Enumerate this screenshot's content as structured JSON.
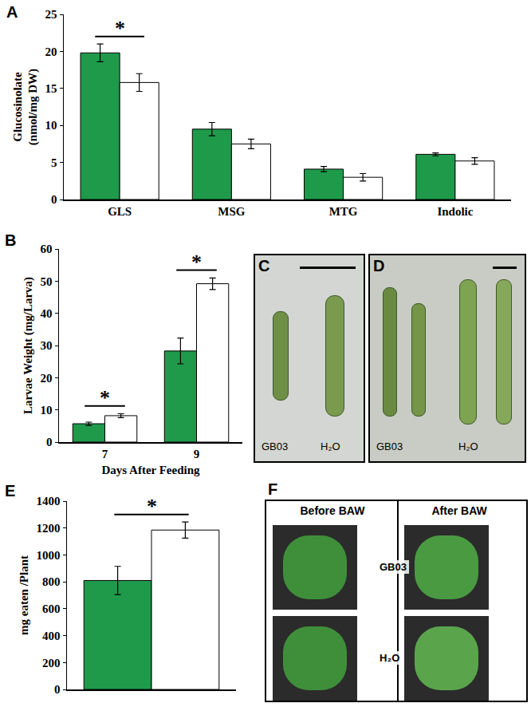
{
  "chart_data": [
    {
      "panel": "A",
      "type": "bar",
      "categories": [
        "GLS",
        "MSG",
        "MTG",
        "Indolic"
      ],
      "y_label": "Glucosinolate\n(nmol/mg DW)",
      "series": [
        {
          "color": "#1f9a4b",
          "values": [
            19.8,
            9.5,
            4.1,
            6.1
          ],
          "error": [
            1.2,
            0.9,
            0.35,
            0.2
          ]
        },
        {
          "color": "#ffffff",
          "values": [
            15.8,
            7.5,
            3.0,
            5.2
          ],
          "error": [
            1.2,
            0.65,
            0.5,
            0.45
          ]
        }
      ],
      "ylim": [
        0,
        25
      ],
      "yticks": [
        0,
        5,
        10,
        15,
        20,
        25
      ],
      "grid": false,
      "annotations": [
        {
          "text": "*",
          "category": "GLS"
        }
      ]
    },
    {
      "panel": "B",
      "type": "bar",
      "categories": [
        "7",
        "9"
      ],
      "x_label": "Days After Feeding",
      "y_label": "Larvae Weight (mg/Larva)",
      "series": [
        {
          "color": "#1f9a4b",
          "values": [
            5.7,
            28.3
          ],
          "error": [
            0.5,
            4.0
          ]
        },
        {
          "color": "#ffffff",
          "values": [
            8.2,
            49.2
          ],
          "error": [
            0.6,
            1.8
          ]
        }
      ],
      "ylim": [
        0,
        60
      ],
      "yticks": [
        0,
        10,
        20,
        30,
        40,
        50,
        60
      ],
      "grid": false,
      "annotations": [
        {
          "text": "*",
          "category": "7"
        },
        {
          "text": "*",
          "category": "9"
        }
      ]
    },
    {
      "panel": "E",
      "type": "bar",
      "categories": [
        null
      ],
      "y_label": "mg eaten /Plant",
      "series": [
        {
          "color": "#1f9a4b",
          "values": [
            810
          ],
          "error": [
            105
          ]
        },
        {
          "color": "#ffffff",
          "values": [
            1185
          ],
          "error": [
            60
          ]
        }
      ],
      "ylim": [
        0,
        1400
      ],
      "yticks": [
        0,
        200,
        400,
        600,
        800,
        1000,
        1200,
        1400
      ],
      "grid": false,
      "tick_labels": "y",
      "annotations": [
        {
          "text": "*",
          "category": null
        }
      ]
    }
  ],
  "photos": [
    {
      "panel": "C",
      "labels": [
        "GB03",
        "H₂O"
      ]
    },
    {
      "panel": "D",
      "labels": [
        "GB03",
        "H₂O"
      ]
    },
    {
      "panel": "F",
      "columns": [
        "Before  BAW",
        "After BAW"
      ],
      "rows": [
        "GB03",
        "H₂O"
      ]
    }
  ]
}
